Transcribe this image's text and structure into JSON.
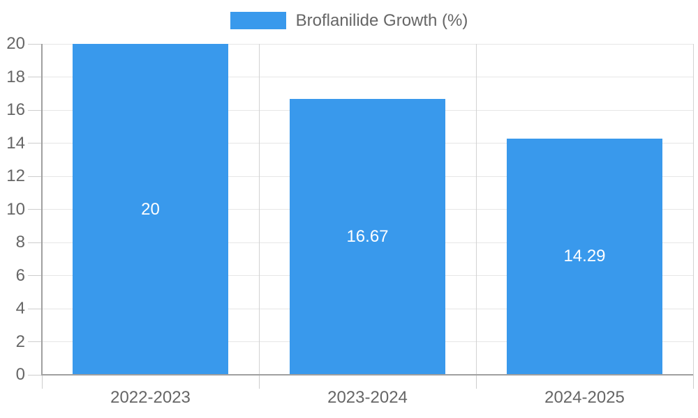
{
  "chart_data": {
    "type": "bar",
    "title": "",
    "legend": {
      "label": "Broflanilide Growth (%)",
      "position": "top"
    },
    "categories": [
      "2022-2023",
      "2023-2024",
      "2024-2025"
    ],
    "values": [
      20,
      16.67,
      14.29
    ],
    "value_labels": [
      "20",
      "16.67",
      "14.29"
    ],
    "xlabel": "",
    "ylabel": "",
    "ylim": [
      0,
      20
    ],
    "y_ticks": [
      0,
      2,
      4,
      6,
      8,
      10,
      12,
      14,
      16,
      18,
      20
    ],
    "grid": true,
    "colors": {
      "bar": "#3999ec",
      "value_label_text": "#ffffff",
      "axis_text": "#666666",
      "grid_line_horizontal": "#e6e6e6",
      "grid_line_vertical": "#d2d2d2",
      "tick_mark": "#cdcdcd",
      "axis_border": "#a0a0a0",
      "background": "#ffffff"
    }
  }
}
